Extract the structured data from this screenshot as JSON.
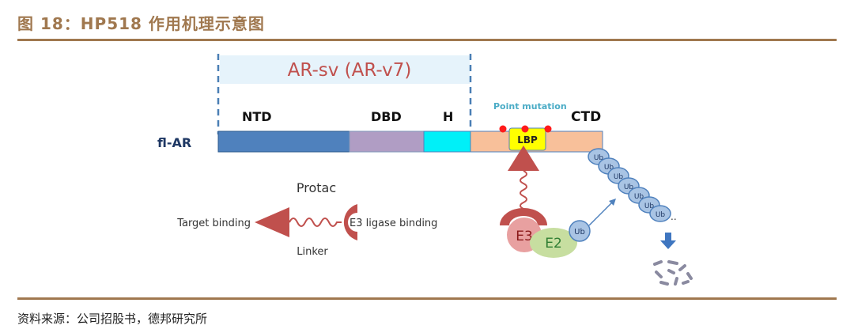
{
  "header": {
    "title": "图 18：HP518 作用机理示意图"
  },
  "footer": {
    "source": "资料来源：公司招股书，德邦研究所"
  },
  "diagram": {
    "ar_sv_label": "AR-sv (AR-v7)",
    "fl_ar_label": "fl-AR",
    "domains": {
      "ntd": "NTD",
      "dbd": "DBD",
      "h": "H",
      "ctd": "CTD"
    },
    "lbp": "LBP",
    "point_mutation": "Point mutation",
    "protac": {
      "title": "Protac",
      "target": "Target binding",
      "e3": "E3 ligase binding",
      "linker": "Linker"
    },
    "e3": "E3",
    "e2": "E2",
    "ub": "Ub",
    "ellipsis": "..",
    "colors": {
      "brand": "#a0784f",
      "ntd": "#4f81bd",
      "dbd": "#b09dc4",
      "h": "#00f0f8",
      "ctd": "#f8c09a",
      "lbp": "#ffff00",
      "protac": "#c0504d",
      "ub": "#a9c4e4"
    }
  }
}
